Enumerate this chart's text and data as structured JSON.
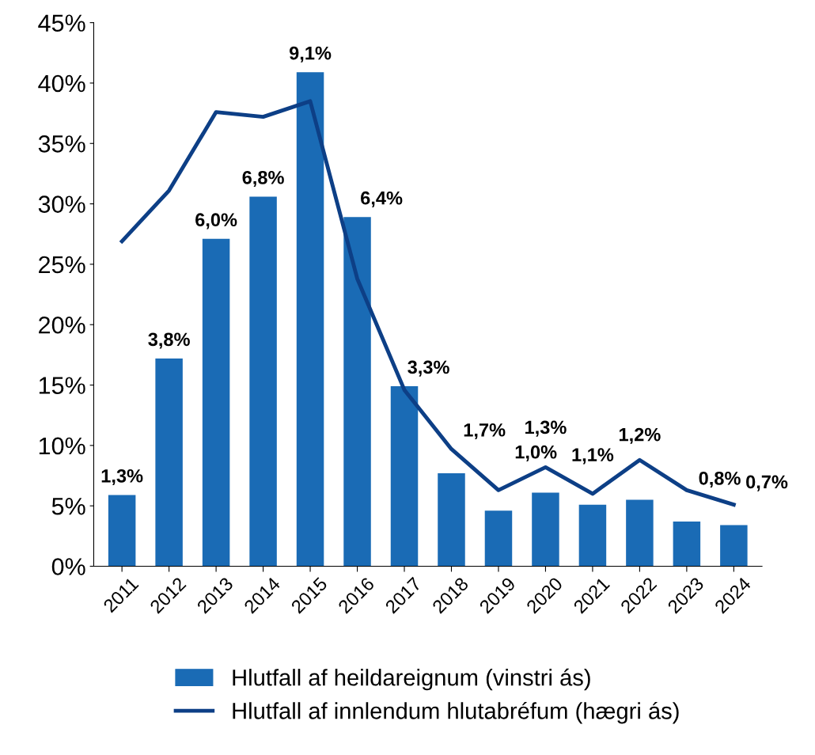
{
  "chart_data": {
    "type": "bar",
    "categories": [
      "2011",
      "2012",
      "2013",
      "2014",
      "2015",
      "2016",
      "2017",
      "2018",
      "2019",
      "2020",
      "2021",
      "2022",
      "2023",
      "2024"
    ],
    "series": [
      {
        "name": "Hlutfall af heildareignum (vinstri ás)",
        "color": "#1a6bb5",
        "values": [
          5.9,
          17.2,
          27.1,
          30.6,
          40.9,
          28.9,
          14.9,
          7.7,
          4.6,
          6.1,
          5.1,
          5.5,
          3.7,
          3.4
        ]
      },
      {
        "name": "Hlutfall af innlendum hlutabréfum (hægri ás)",
        "type": "line",
        "color": "#0d3f86",
        "values": [
          26.9,
          31.1,
          37.6,
          37.2,
          38.5,
          23.8,
          14.6,
          9.7,
          6.3,
          8.2,
          6.0,
          8.8,
          6.3,
          5.1
        ]
      }
    ],
    "annotations": [
      {
        "text": "1,3%",
        "x": "2011",
        "y": 5.9
      },
      {
        "text": "3,8%",
        "x": "2012",
        "y": 17.2
      },
      {
        "text": "6,0%",
        "x": "2013",
        "y": 27.1
      },
      {
        "text": "6,8%",
        "x": "2014",
        "y": 30.6
      },
      {
        "text": "9,1%",
        "x": "2015",
        "y": 40.9
      },
      {
        "text": "6,4%",
        "x": "2016",
        "y": 28.9
      },
      {
        "text": "3,3%",
        "x": "2017",
        "y": 14.9
      },
      {
        "text": "1,7%",
        "x": "2018",
        "y": 7.7
      },
      {
        "text": "1,0%",
        "x": "2019",
        "y": 4.6
      },
      {
        "text": "1,3%",
        "x": "2020",
        "y": 6.1
      },
      {
        "text": "1,1%",
        "x": "2021",
        "y": 5.1
      },
      {
        "text": "1,2%",
        "x": "2022",
        "y": 5.5
      },
      {
        "text": "0,8%",
        "x": "2023",
        "y": 3.7
      },
      {
        "text": "0,7%",
        "x": "2024",
        "y": 3.4
      }
    ],
    "ylim": [
      0,
      45
    ],
    "yticks": [
      {
        "value": 0,
        "label": "0%"
      },
      {
        "value": 5,
        "label": "5%"
      },
      {
        "value": 10,
        "label": "10%"
      },
      {
        "value": 15,
        "label": "15%"
      },
      {
        "value": 20,
        "label": "20%"
      },
      {
        "value": 25,
        "label": "25%"
      },
      {
        "value": 30,
        "label": "30%"
      },
      {
        "value": 35,
        "label": "35%"
      },
      {
        "value": 40,
        "label": "40%"
      },
      {
        "value": 45,
        "label": "45%"
      }
    ],
    "grid": false,
    "legend": "bottom",
    "marker": "none",
    "line_style": "solid"
  }
}
